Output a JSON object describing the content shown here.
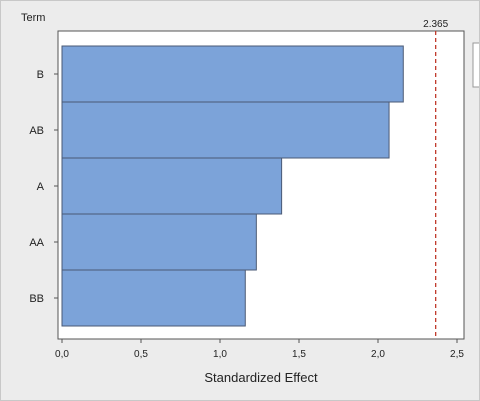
{
  "chart_data": {
    "type": "bar",
    "orientation": "horizontal",
    "title": "",
    "ylabel": "Term",
    "xlabel": "Standardized Effect",
    "categories": [
      "B",
      "AB",
      "A",
      "AA",
      "BB"
    ],
    "values": [
      2.16,
      2.07,
      1.39,
      1.23,
      1.16
    ],
    "xlim": [
      0,
      2.5
    ],
    "xticks": [
      "0,0",
      "0,5",
      "1,0",
      "1,5",
      "2,0",
      "2,5"
    ],
    "reference_line": {
      "value": 2.365,
      "label": "2.365"
    },
    "grid": false,
    "legend": "none"
  },
  "colors": {
    "bar_fill": "#7ca3d9",
    "bar_stroke": "#4a5a75",
    "reference_line": "#c0392b",
    "plot_background": "#ffffff",
    "panel_background": "#ececec"
  }
}
